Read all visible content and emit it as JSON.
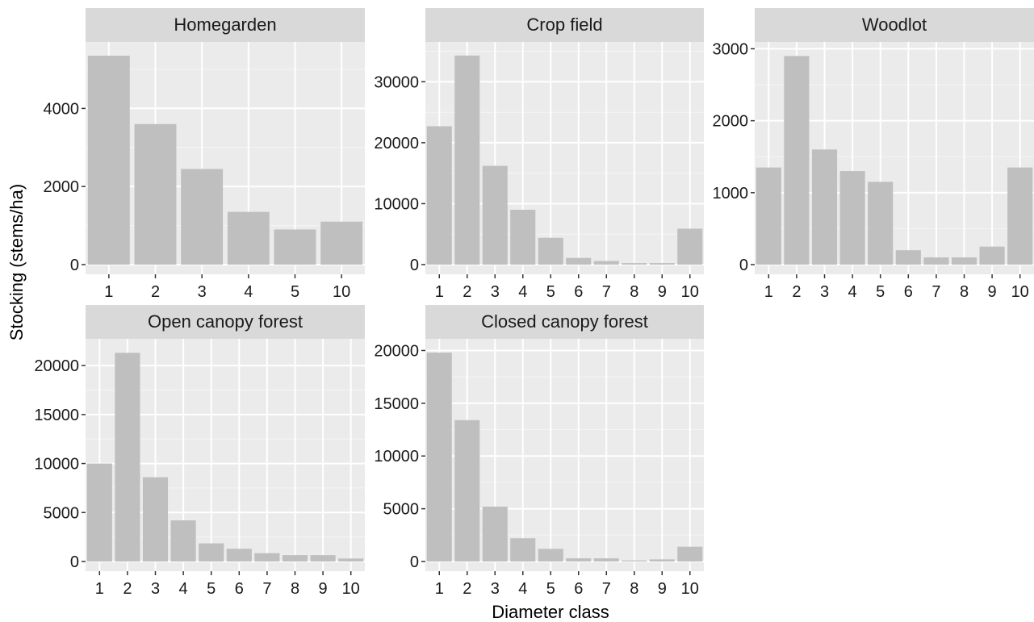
{
  "chart_data": {
    "type": "bar",
    "xlabel": "Diameter class",
    "ylabel": "Stocking (stems/ha)",
    "bar_color": "#bfbfbf",
    "panel_background": "#ebebeb",
    "strip_background": "#d9d9d9",
    "grid": true,
    "facets": [
      {
        "title": "Homegarden",
        "categories": [
          "1",
          "2",
          "3",
          "4",
          "5",
          "10"
        ],
        "values": [
          5350,
          3600,
          2450,
          1350,
          900,
          1100
        ],
        "ylim": [
          0,
          5620
        ],
        "yticks": [
          0,
          2000,
          4000
        ],
        "ytick_labels": [
          "0",
          "2000",
          "4000"
        ]
      },
      {
        "title": "Crop field",
        "categories": [
          "1",
          "2",
          "3",
          "4",
          "5",
          "6",
          "7",
          "8",
          "9",
          "10"
        ],
        "values": [
          22700,
          34300,
          16200,
          9000,
          4400,
          1100,
          600,
          250,
          250,
          5900
        ],
        "ylim": [
          0,
          36000
        ],
        "yticks": [
          0,
          10000,
          20000,
          30000
        ],
        "ytick_labels": [
          "0",
          "10000",
          "20000",
          "30000"
        ]
      },
      {
        "title": "Woodlot",
        "categories": [
          "1",
          "2",
          "3",
          "4",
          "5",
          "6",
          "7",
          "8",
          "9",
          "10"
        ],
        "values": [
          1350,
          2900,
          1600,
          1300,
          1150,
          200,
          100,
          100,
          250,
          1350
        ],
        "ylim": [
          0,
          3050
        ],
        "yticks": [
          0,
          1000,
          2000,
          3000
        ],
        "ytick_labels": [
          "0",
          "1000",
          "2000",
          "3000"
        ]
      },
      {
        "title": "Open canopy forest",
        "categories": [
          "1",
          "2",
          "3",
          "4",
          "5",
          "6",
          "7",
          "8",
          "9",
          "10"
        ],
        "values": [
          10000,
          21300,
          8600,
          4200,
          1850,
          1300,
          850,
          650,
          650,
          300
        ],
        "ylim": [
          0,
          22400
        ],
        "yticks": [
          0,
          5000,
          10000,
          15000,
          20000
        ],
        "ytick_labels": [
          "0",
          "5000",
          "10000",
          "15000",
          "20000"
        ]
      },
      {
        "title": "Closed canopy forest",
        "categories": [
          "1",
          "2",
          "3",
          "4",
          "5",
          "6",
          "7",
          "8",
          "9",
          "10"
        ],
        "values": [
          19800,
          13400,
          5200,
          2200,
          1200,
          300,
          300,
          100,
          200,
          1400
        ],
        "ylim": [
          0,
          20800
        ],
        "yticks": [
          0,
          5000,
          10000,
          15000,
          20000
        ],
        "ytick_labels": [
          "0",
          "5000",
          "10000",
          "15000",
          "20000"
        ]
      }
    ]
  }
}
